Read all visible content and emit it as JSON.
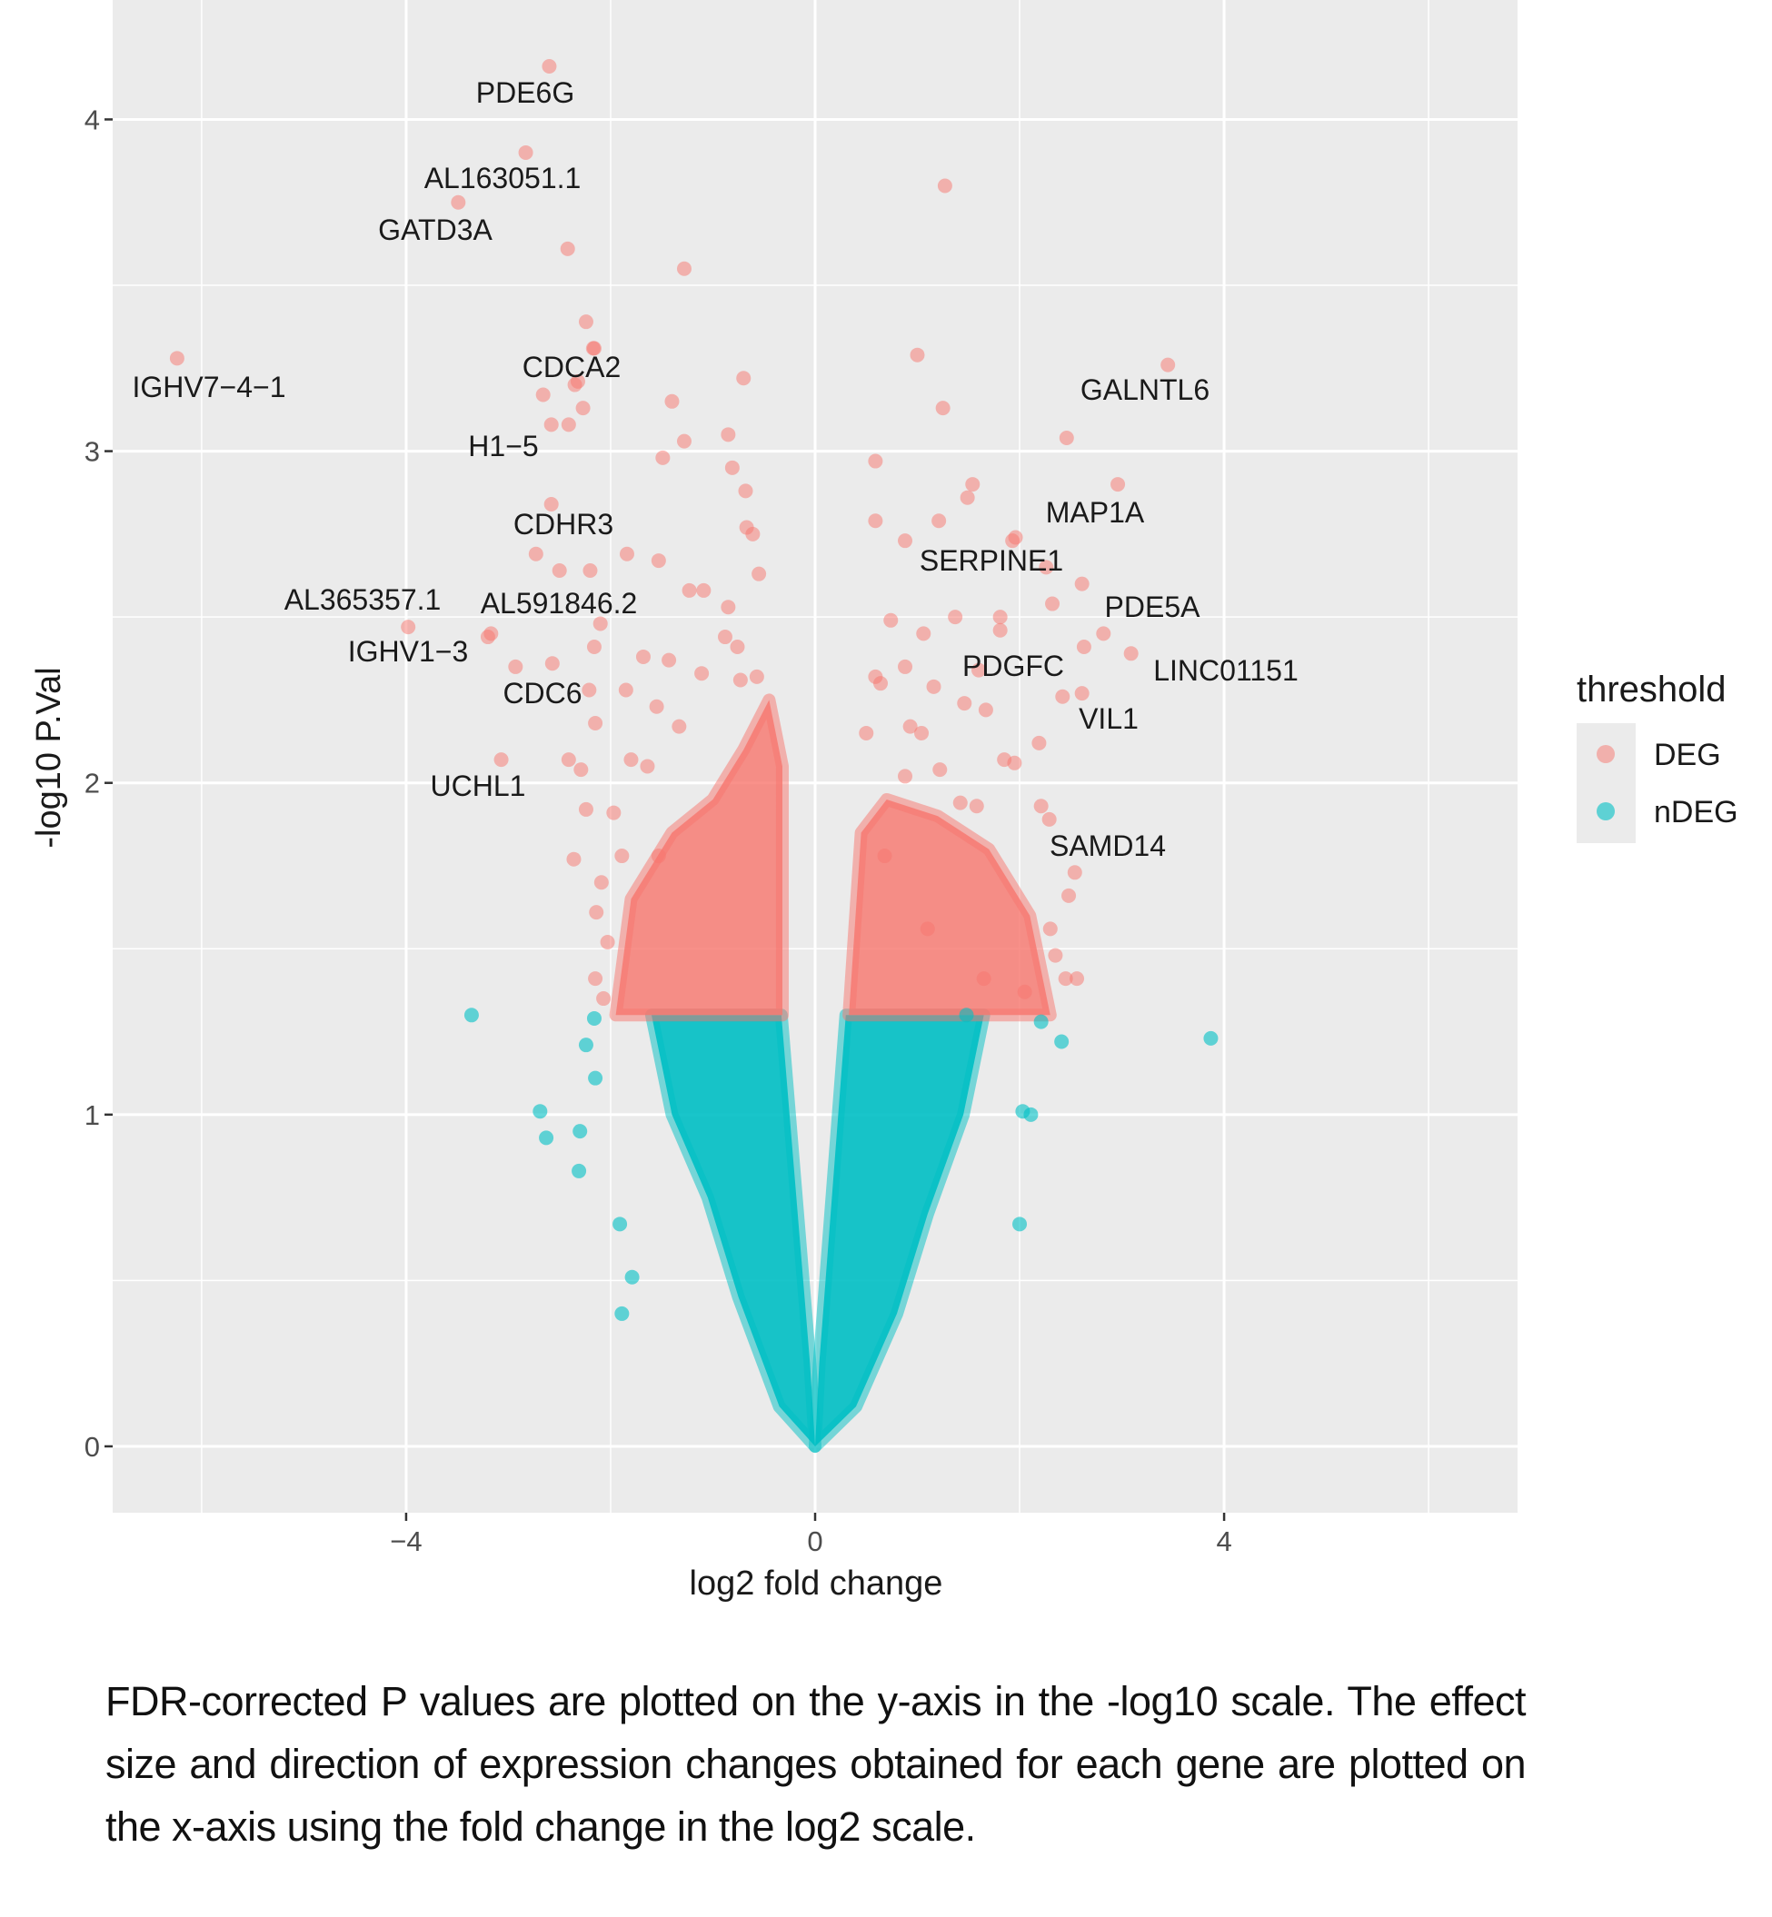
{
  "chart_data": {
    "type": "scatter",
    "xlabel": "log2 fold change",
    "ylabel": "-log10 P.Val",
    "xlim": [
      -6.87,
      6.87
    ],
    "ylim": [
      -0.2,
      4.36
    ],
    "x_ticks": [
      -4,
      0,
      4
    ],
    "y_ticks": [
      0,
      1,
      2,
      3,
      4
    ],
    "grid": true,
    "legend": {
      "title": "threshold",
      "position": "right",
      "entries": [
        "DEG",
        "nDEG"
      ]
    },
    "colors": {
      "DEG": "#F8766D",
      "nDEG": "#00BFC4",
      "panel": "#EBEBEB",
      "grid": "#FFFFFF"
    },
    "significance_threshold_y": 1.3,
    "labeled_genes": [
      {
        "gene": "PDE6G",
        "x": -2.6,
        "y": 4.16
      },
      {
        "gene": "AL163051.1",
        "x": -2.83,
        "y": 3.9
      },
      {
        "gene": "GATD3A",
        "x": -3.49,
        "y": 3.75
      },
      {
        "gene": "IGHV7−4−1",
        "x": -6.24,
        "y": 3.28
      },
      {
        "gene": "CDCA2",
        "x": -2.17,
        "y": 3.31
      },
      {
        "gene": "H1−5",
        "x": -2.35,
        "y": 3.2
      },
      {
        "gene": "CDHR3",
        "x": -2.58,
        "y": 2.84
      },
      {
        "gene": "AL365357.1",
        "x": -3.98,
        "y": 2.47
      },
      {
        "gene": "AL591846.2",
        "x": -3.17,
        "y": 2.45
      },
      {
        "gene": "IGHV1−3",
        "x": -3.2,
        "y": 2.44
      },
      {
        "gene": "CDC6",
        "x": -2.93,
        "y": 2.35
      },
      {
        "gene": "UCHL1",
        "x": -3.07,
        "y": 2.07
      },
      {
        "gene": "GALNTL6",
        "x": 3.45,
        "y": 3.26
      },
      {
        "gene": "MAP1A",
        "x": 2.96,
        "y": 2.9
      },
      {
        "gene": "SERPINE1",
        "x": 1.96,
        "y": 2.74
      },
      {
        "gene": "PDE5A",
        "x": 2.61,
        "y": 2.6
      },
      {
        "gene": "LINC01151",
        "x": 3.09,
        "y": 2.39
      },
      {
        "gene": "PDGFC",
        "x": 1.6,
        "y": 2.34
      },
      {
        "gene": "VIL1",
        "x": 2.61,
        "y": 2.27
      },
      {
        "gene": "SAMD14",
        "x": 2.21,
        "y": 1.93
      }
    ],
    "series": [
      {
        "name": "DEG",
        "points": [
          [
            -2.42,
            3.61
          ],
          [
            -1.28,
            3.55
          ],
          [
            -2.24,
            3.39
          ],
          [
            -2.16,
            3.31
          ],
          [
            -2.32,
            3.21
          ],
          [
            -2.66,
            3.17
          ],
          [
            -2.27,
            3.13
          ],
          [
            -2.58,
            3.08
          ],
          [
            -2.41,
            3.08
          ],
          [
            -1.4,
            3.15
          ],
          [
            -0.7,
            3.22
          ],
          [
            -1.28,
            3.03
          ],
          [
            -1.49,
            2.98
          ],
          [
            -0.85,
            3.05
          ],
          [
            -0.81,
            2.95
          ],
          [
            -0.68,
            2.88
          ],
          [
            -0.67,
            2.77
          ],
          [
            -0.61,
            2.75
          ],
          [
            -0.55,
            2.63
          ],
          [
            -0.85,
            2.53
          ],
          [
            -1.84,
            2.69
          ],
          [
            -1.53,
            2.67
          ],
          [
            -2.2,
            2.64
          ],
          [
            -2.5,
            2.64
          ],
          [
            -2.73,
            2.69
          ],
          [
            -1.23,
            2.58
          ],
          [
            -1.09,
            2.58
          ],
          [
            -0.88,
            2.44
          ],
          [
            -0.76,
            2.41
          ],
          [
            -1.68,
            2.38
          ],
          [
            -1.43,
            2.37
          ],
          [
            -1.11,
            2.33
          ],
          [
            -0.73,
            2.31
          ],
          [
            -0.57,
            2.32
          ],
          [
            -2.57,
            2.36
          ],
          [
            -2.16,
            2.41
          ],
          [
            -2.1,
            2.48
          ],
          [
            -2.21,
            2.28
          ],
          [
            -2.15,
            2.18
          ],
          [
            -1.85,
            2.28
          ],
          [
            -1.55,
            2.23
          ],
          [
            -1.33,
            2.17
          ],
          [
            -2.41,
            2.07
          ],
          [
            -2.29,
            2.04
          ],
          [
            -1.8,
            2.07
          ],
          [
            -1.64,
            2.05
          ],
          [
            -2.24,
            1.92
          ],
          [
            -1.97,
            1.91
          ],
          [
            -2.36,
            1.77
          ],
          [
            -2.09,
            1.7
          ],
          [
            -2.14,
            1.61
          ],
          [
            -2.03,
            1.52
          ],
          [
            -2.15,
            1.41
          ],
          [
            -2.07,
            1.35
          ],
          [
            -1.89,
            1.78
          ],
          [
            -1.53,
            1.78
          ],
          [
            1.27,
            3.8
          ],
          [
            1.0,
            3.29
          ],
          [
            1.25,
            3.13
          ],
          [
            2.46,
            3.04
          ],
          [
            0.59,
            2.97
          ],
          [
            1.54,
            2.9
          ],
          [
            1.49,
            2.86
          ],
          [
            1.21,
            2.79
          ],
          [
            0.59,
            2.79
          ],
          [
            0.88,
            2.73
          ],
          [
            1.93,
            2.73
          ],
          [
            2.26,
            2.65
          ],
          [
            2.32,
            2.54
          ],
          [
            0.74,
            2.49
          ],
          [
            1.37,
            2.5
          ],
          [
            1.81,
            2.5
          ],
          [
            1.81,
            2.46
          ],
          [
            1.06,
            2.45
          ],
          [
            2.82,
            2.45
          ],
          [
            2.63,
            2.41
          ],
          [
            0.88,
            2.35
          ],
          [
            1.16,
            2.29
          ],
          [
            1.46,
            2.24
          ],
          [
            1.67,
            2.22
          ],
          [
            2.42,
            2.26
          ],
          [
            0.59,
            2.32
          ],
          [
            0.64,
            2.3
          ],
          [
            0.93,
            2.17
          ],
          [
            1.04,
            2.15
          ],
          [
            2.19,
            2.12
          ],
          [
            1.85,
            2.07
          ],
          [
            1.95,
            2.06
          ],
          [
            0.88,
            2.02
          ],
          [
            1.22,
            2.04
          ],
          [
            1.42,
            1.94
          ],
          [
            1.58,
            1.93
          ],
          [
            2.29,
            1.89
          ],
          [
            2.54,
            1.73
          ],
          [
            2.48,
            1.66
          ],
          [
            2.3,
            1.56
          ],
          [
            2.35,
            1.48
          ],
          [
            2.56,
            1.41
          ],
          [
            2.45,
            1.41
          ],
          [
            2.05,
            1.37
          ],
          [
            1.65,
            1.41
          ],
          [
            1.1,
            1.56
          ],
          [
            0.68,
            1.78
          ],
          [
            0.5,
            2.15
          ]
        ],
        "dense_regions": [
          [
            [
              -1.95,
              1.3
            ],
            [
              -0.32,
              1.3
            ],
            [
              -0.32,
              2.05
            ],
            [
              -0.45,
              2.25
            ],
            [
              -0.7,
              2.1
            ],
            [
              -1.0,
              1.95
            ],
            [
              -1.4,
              1.85
            ],
            [
              -1.8,
              1.65
            ]
          ],
          [
            [
              0.33,
              1.3
            ],
            [
              2.3,
              1.3
            ],
            [
              2.1,
              1.6
            ],
            [
              1.7,
              1.8
            ],
            [
              1.2,
              1.9
            ],
            [
              0.7,
              1.95
            ],
            [
              0.45,
              1.85
            ]
          ]
        ]
      },
      {
        "name": "nDEG",
        "points": [
          [
            -3.36,
            1.3
          ],
          [
            3.87,
            1.23
          ],
          [
            -2.16,
            1.29
          ],
          [
            -2.24,
            1.21
          ],
          [
            -2.15,
            1.11
          ],
          [
            -2.69,
            1.01
          ],
          [
            -2.63,
            0.93
          ],
          [
            -2.3,
            0.95
          ],
          [
            -2.31,
            0.83
          ],
          [
            -1.89,
            0.4
          ],
          [
            -1.91,
            0.67
          ],
          [
            -1.79,
            0.51
          ],
          [
            2.41,
            1.22
          ],
          [
            2.21,
            1.28
          ],
          [
            2.11,
            1.0
          ],
          [
            2.03,
            1.01
          ],
          [
            2.0,
            0.67
          ],
          [
            1.48,
            1.3
          ]
        ],
        "dense_regions": [
          [
            [
              -1.6,
              1.3
            ],
            [
              -0.33,
              1.3
            ],
            [
              -0.05,
              0.25
            ],
            [
              0,
              0
            ],
            [
              -0.35,
              0.12
            ],
            [
              -0.75,
              0.45
            ],
            [
              -1.05,
              0.75
            ],
            [
              -1.4,
              1.0
            ]
          ],
          [
            [
              0.3,
              1.3
            ],
            [
              1.65,
              1.3
            ],
            [
              1.45,
              1.0
            ],
            [
              1.1,
              0.7
            ],
            [
              0.8,
              0.4
            ],
            [
              0.4,
              0.12
            ],
            [
              0,
              0
            ],
            [
              0.04,
              0.25
            ]
          ]
        ]
      }
    ]
  },
  "caption": "FDR-corrected P values are plotted on the y-axis in the -log10 scale. The effect size and direction of expression changes obtained for each gene are plotted on the x-axis using the fold change in the log2 scale."
}
